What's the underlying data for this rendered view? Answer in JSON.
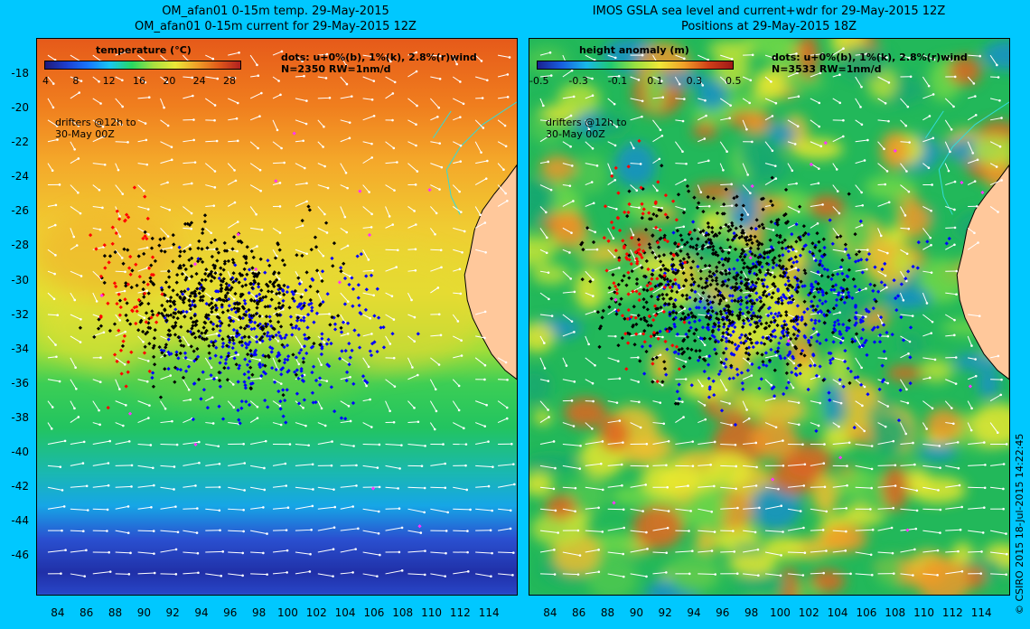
{
  "left": {
    "title_line1": "OM_afan01 0-15m temp. 29-May-2015",
    "title_line2": "OM_afan01 0-15m current for 29-May-2015 12Z",
    "colorbar_label": "temperature (°C)",
    "colorbar_ticks": [
      "4",
      "8",
      "12",
      "16",
      "20",
      "24",
      "28"
    ],
    "dots_note": "dots: u+0%(b), 1%(k), 2.8%(r)wind",
    "count_note": "N=2350 RW=1nm/d",
    "drifters_note": "drifters @12h to\n30-May 00Z"
  },
  "right": {
    "title_line1": "IMOS GSLA sea level and current+wdr for 29-May-2015 12Z",
    "title_line2": "Positions at 29-May-2015 18Z",
    "colorbar_label": "height anomaly (m)",
    "colorbar_ticks": [
      "-0.5",
      "-0.3",
      "-0.1",
      "0.1",
      "0.3",
      "0.5"
    ],
    "dots_note": "dots: u+0%(b), 1%(k), 2.8%(r)wind",
    "count_note": "N=3533 RW=1nm/d",
    "drifters_note": "drifters @12h to\n30-May 00Z"
  },
  "y_axis_labels": [
    "-18",
    "-20",
    "-22",
    "-24",
    "-26",
    "-28",
    "-30",
    "-32",
    "-34",
    "-36",
    "-38",
    "-40",
    "-42",
    "-44",
    "-46"
  ],
  "x_axis_labels": [
    "84",
    "86",
    "88",
    "90",
    "92",
    "94",
    "96",
    "98",
    "100",
    "102",
    "104",
    "106",
    "108",
    "110",
    "112",
    "114"
  ],
  "credit": "© CSIRO 2015   18-Jul-2015 14:22:45",
  "colors": {
    "background": "#00c8ff",
    "land": "#ffc89b",
    "coastline": "#33dcd8",
    "current_vectors": "#ffffff",
    "drifter_blue": "#0000ff",
    "drifter_black": "#000000",
    "drifter_red": "#ff0000",
    "drifter_magenta": "#ff33ff"
  },
  "map": {
    "lon_range": [
      82.5,
      116
    ],
    "lat_range": [
      -48.3,
      -15.9
    ]
  }
}
